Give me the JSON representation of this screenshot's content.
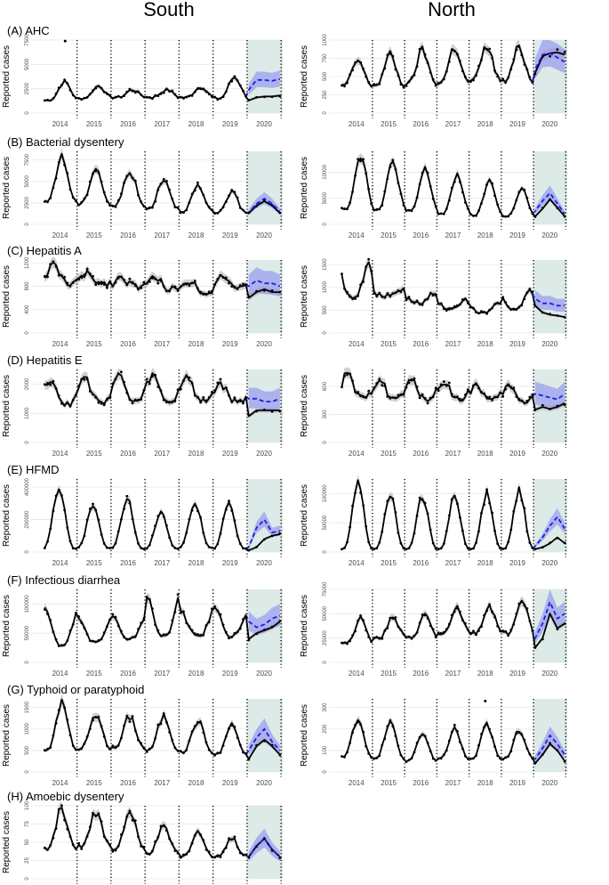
{
  "columns": {
    "south": "South",
    "north": "North"
  },
  "colors": {
    "observed": "#000000",
    "fitted": "#000000",
    "counterfactual": "#1f1fe0",
    "counterfactual_band": "#8c8cf0",
    "fitted_band": "#bdbdbd",
    "covid_period": "#dcebe8",
    "grid": "#e6e6e6"
  },
  "chart_data": [
    {
      "id": "south-A",
      "panel": "South",
      "type": "line",
      "title": "(A) AHC",
      "ylabel": "Reported cases",
      "x": [
        2014,
        2015,
        2016,
        2017,
        2018,
        2019,
        2020
      ],
      "yticks": [
        "0",
        "2500",
        "5000",
        "7500"
      ],
      "ylim": [
        0,
        7500
      ],
      "peaks": [
        3200,
        2800,
        2400,
        2400,
        2700,
        3700,
        3300
      ],
      "troughs": [
        1300,
        1500,
        1600,
        1600,
        1600,
        1500,
        1400
      ],
      "peak_month": 7,
      "outliers": [
        [
          2014.6,
          7400
        ]
      ],
      "counterfactual_2020": [
        2400,
        3400,
        3400,
        3300,
        3500
      ],
      "observed_2020": [
        1300,
        1600,
        1700,
        1700,
        1800
      ]
    },
    {
      "id": "north-A",
      "panel": "North",
      "type": "line",
      "title": "",
      "ylabel": "Reported cases",
      "x": [
        2014,
        2015,
        2016,
        2017,
        2018,
        2019,
        2020
      ],
      "yticks": [
        "0",
        "250",
        "500",
        "750",
        "1000"
      ],
      "ylim": [
        0,
        1000
      ],
      "peaks": [
        720,
        800,
        860,
        900,
        910,
        900,
        850
      ],
      "troughs": [
        380,
        380,
        400,
        420,
        450,
        430,
        400
      ],
      "peak_month": 6,
      "outliers": [],
      "counterfactual_2020": [
        600,
        800,
        820,
        760,
        700
      ],
      "observed_2020": [
        550,
        780,
        820,
        830,
        800
      ]
    },
    {
      "id": "south-B",
      "panel": "South",
      "type": "line",
      "title": "(B) Bacterial dysentery",
      "ylabel": "Reported cases",
      "x": [
        2014,
        2015,
        2016,
        2017,
        2018,
        2019,
        2020
      ],
      "yticks": [
        "0",
        "2500",
        "5000",
        "7500"
      ],
      "ylim": [
        0,
        8500
      ],
      "peaks": [
        7800,
        6600,
        6200,
        5300,
        4400,
        3700,
        2900
      ],
      "troughs": [
        2600,
        2300,
        2100,
        1800,
        1500,
        1300,
        1100
      ],
      "peak_month": 6,
      "outliers": [],
      "counterfactual_2020": [
        1400,
        2400,
        3000,
        2400,
        1500
      ],
      "observed_2020": [
        1300,
        2200,
        2700,
        2200,
        1300
      ]
    },
    {
      "id": "north-B",
      "panel": "North",
      "type": "line",
      "title": "",
      "ylabel": "Reported cases",
      "x": [
        2014,
        2015,
        2016,
        2017,
        2018,
        2019,
        2020
      ],
      "yticks": [
        "0",
        "5000",
        "10000"
      ],
      "ylim": [
        0,
        14000
      ],
      "peaks": [
        13500,
        12000,
        10500,
        9500,
        8300,
        6800,
        6000
      ],
      "troughs": [
        3000,
        2800,
        2500,
        2000,
        1700,
        1500,
        1000
      ],
      "peak_month": 7,
      "outliers": [],
      "counterfactual_2020": [
        2500,
        4500,
        6000,
        4000,
        2000
      ],
      "observed_2020": [
        1500,
        3000,
        4800,
        3200,
        1500
      ]
    },
    {
      "id": "south-C",
      "panel": "South",
      "type": "line",
      "title": "(C) Hepatitis A",
      "ylabel": "Reported cases",
      "x": [
        2014,
        2015,
        2016,
        2017,
        2018,
        2019,
        2020
      ],
      "yticks": [
        "0",
        "400",
        "800",
        "1200"
      ],
      "ylim": [
        0,
        1250
      ],
      "peaks": [
        1150,
        1000,
        950,
        950,
        900,
        1000,
        900
      ],
      "troughs": [
        850,
        850,
        800,
        750,
        700,
        750,
        500
      ],
      "peak_month": 3,
      "outliers": [],
      "counterfactual_2020": [
        800,
        900,
        850,
        850,
        800
      ],
      "observed_2020": [
        600,
        700,
        750,
        700,
        700
      ]
    },
    {
      "id": "north-C",
      "panel": "North",
      "type": "line",
      "title": "",
      "ylabel": "Reported cases",
      "x": [
        2014,
        2015,
        2016,
        2017,
        2018,
        2019,
        2020
      ],
      "yticks": [
        "0",
        "500",
        "1000",
        "1500"
      ],
      "ylim": [
        0,
        1600
      ],
      "peaks": [
        1500,
        950,
        850,
        700,
        650,
        950,
        800
      ],
      "troughs": [
        800,
        800,
        650,
        550,
        450,
        500,
        350
      ],
      "peak_month": 10,
      "outliers": [],
      "counterfactual_2020": [
        750,
        650,
        650,
        600,
        600
      ],
      "observed_2020": [
        600,
        450,
        400,
        380,
        350
      ]
    },
    {
      "id": "south-D",
      "panel": "South",
      "type": "line",
      "title": "(D) Hepatitis E",
      "ylabel": "Reported cases",
      "x": [
        2014,
        2015,
        2016,
        2017,
        2018,
        2019,
        2020
      ],
      "yticks": [
        "0",
        "1000",
        "2000"
      ],
      "ylim": [
        0,
        2500
      ],
      "peaks": [
        2200,
        2200,
        2300,
        2300,
        2300,
        2000,
        1600
      ],
      "troughs": [
        1300,
        1400,
        1400,
        1400,
        1400,
        1400,
        1000
      ],
      "peak_month": 2,
      "outliers": [],
      "counterfactual_2020": [
        1500,
        1500,
        1400,
        1400,
        1500
      ],
      "observed_2020": [
        900,
        1100,
        1100,
        1100,
        1100
      ]
    },
    {
      "id": "north-D",
      "panel": "North",
      "type": "line",
      "title": "",
      "ylabel": "Reported cases",
      "x": [
        2014,
        2015,
        2016,
        2017,
        2018,
        2019,
        2020
      ],
      "yticks": [
        "0",
        "300",
        "600"
      ],
      "ylim": [
        0,
        780
      ],
      "peaks": [
        720,
        680,
        650,
        650,
        620,
        600,
        560
      ],
      "troughs": [
        470,
        470,
        470,
        460,
        450,
        440,
        300
      ],
      "peak_month": 2,
      "outliers": [],
      "counterfactual_2020": [
        520,
        500,
        480,
        460,
        520
      ],
      "observed_2020": [
        350,
        380,
        360,
        380,
        420
      ]
    },
    {
      "id": "south-E",
      "panel": "South",
      "type": "line",
      "title": "(E) HFMD",
      "ylabel": "Reported cases",
      "x": [
        2014,
        2015,
        2016,
        2017,
        2018,
        2019,
        2020
      ],
      "yticks": [
        "0",
        "200000",
        "400000"
      ],
      "ylim": [
        0,
        450000
      ],
      "peaks": [
        400000,
        280000,
        330000,
        250000,
        300000,
        290000,
        270000
      ],
      "troughs": [
        20000,
        25000,
        20000,
        20000,
        25000,
        20000,
        10000
      ],
      "peak_month": 5,
      "outliers": [],
      "counterfactual_2020": [
        30000,
        150000,
        200000,
        120000,
        130000
      ],
      "observed_2020": [
        10000,
        30000,
        80000,
        100000,
        110000
      ]
    },
    {
      "id": "north-E",
      "panel": "North",
      "type": "line",
      "title": "",
      "ylabel": "Reported cases",
      "x": [
        2014,
        2015,
        2016,
        2017,
        2018,
        2019,
        2020
      ],
      "yticks": [
        "0",
        "50000",
        "100000"
      ],
      "ylim": [
        0,
        125000
      ],
      "peaks": [
        120000,
        100000,
        95000,
        95000,
        100000,
        105000,
        70000
      ],
      "troughs": [
        5000,
        5000,
        5000,
        5000,
        5000,
        5000,
        3000
      ],
      "peak_month": 6,
      "outliers": [],
      "counterfactual_2020": [
        10000,
        25000,
        45000,
        60000,
        40000
      ],
      "observed_2020": [
        5000,
        8000,
        15000,
        25000,
        15000
      ]
    },
    {
      "id": "south-F",
      "panel": "South",
      "type": "line",
      "title": "(F) Infectious diarrhea",
      "ylabel": "Reported cases",
      "x": [
        2014,
        2015,
        2016,
        2017,
        2018,
        2019,
        2020
      ],
      "yticks": [
        "0",
        "50000",
        "100000"
      ],
      "ylim": [
        0,
        125000
      ],
      "peaks": [
        90000,
        75000,
        80000,
        115000,
        90000,
        90000,
        95000
      ],
      "troughs": [
        30000,
        35000,
        40000,
        45000,
        45000,
        45000,
        45000
      ],
      "peak_month": 12,
      "outliers": [],
      "counterfactual_2020": [
        70000,
        60000,
        65000,
        75000,
        80000
      ],
      "observed_2020": [
        40000,
        50000,
        55000,
        60000,
        70000
      ]
    },
    {
      "id": "north-F",
      "panel": "North",
      "type": "line",
      "title": "",
      "ylabel": "Reported cases",
      "x": [
        2014,
        2015,
        2016,
        2017,
        2018,
        2019,
        2020
      ],
      "yticks": [
        "0",
        "25000",
        "50000",
        "75000"
      ],
      "ylim": [
        0,
        75000
      ],
      "peaks": [
        45000,
        45000,
        48000,
        55000,
        58000,
        62000,
        62000
      ],
      "troughs": [
        20000,
        25000,
        25000,
        28000,
        30000,
        30000,
        15000
      ],
      "peak_month": 7,
      "outliers": [],
      "counterfactual_2020": [
        25000,
        40000,
        62000,
        45000,
        50000
      ],
      "observed_2020": [
        15000,
        25000,
        50000,
        35000,
        40000
      ]
    },
    {
      "id": "south-G",
      "panel": "South",
      "type": "line",
      "title": "(G) Typhoid or paratyphoid",
      "ylabel": "Reported cases",
      "x": [
        2014,
        2015,
        2016,
        2017,
        2018,
        2019,
        2020
      ],
      "yticks": [
        "0",
        "500",
        "1000",
        "1500"
      ],
      "ylim": [
        0,
        1700
      ],
      "peaks": [
        1600,
        1300,
        1300,
        1300,
        1200,
        1100,
        1000
      ],
      "troughs": [
        500,
        550,
        550,
        500,
        450,
        400,
        300
      ],
      "peak_month": 6,
      "outliers": [],
      "counterfactual_2020": [
        500,
        800,
        1000,
        700,
        500
      ],
      "observed_2020": [
        300,
        600,
        750,
        600,
        400
      ]
    },
    {
      "id": "north-G",
      "panel": "North",
      "type": "line",
      "title": "",
      "ylabel": "Reported cases",
      "x": [
        2014,
        2015,
        2016,
        2017,
        2018,
        2019,
        2020
      ],
      "yticks": [
        "0",
        "100",
        "200",
        "300"
      ],
      "ylim": [
        0,
        340
      ],
      "peaks": [
        250,
        230,
        180,
        200,
        220,
        200,
        180
      ],
      "troughs": [
        70,
        60,
        50,
        60,
        60,
        60,
        40
      ],
      "peak_month": 6,
      "outliers": [
        [
          2018.45,
          330
        ]
      ],
      "counterfactual_2020": [
        60,
        110,
        170,
        130,
        80
      ],
      "observed_2020": [
        40,
        80,
        130,
        100,
        50
      ]
    },
    {
      "id": "south-H",
      "panel": "South",
      "type": "line",
      "title": "(H) Amoebic dysentery",
      "ylabel": "Reported cases",
      "x": [
        2014,
        2015,
        2016,
        2017,
        2018,
        2019,
        2020
      ],
      "yticks": [
        "0",
        "25",
        "50",
        "75",
        "100"
      ],
      "ylim": [
        0,
        100
      ],
      "peaks": [
        95,
        90,
        90,
        70,
        65,
        55,
        55
      ],
      "troughs": [
        40,
        45,
        40,
        35,
        30,
        30,
        25
      ],
      "peak_month": 6,
      "outliers": [],
      "counterfactual_2020": [
        30,
        45,
        55,
        40,
        30
      ],
      "observed_2020": [
        30,
        45,
        55,
        40,
        30
      ]
    }
  ]
}
